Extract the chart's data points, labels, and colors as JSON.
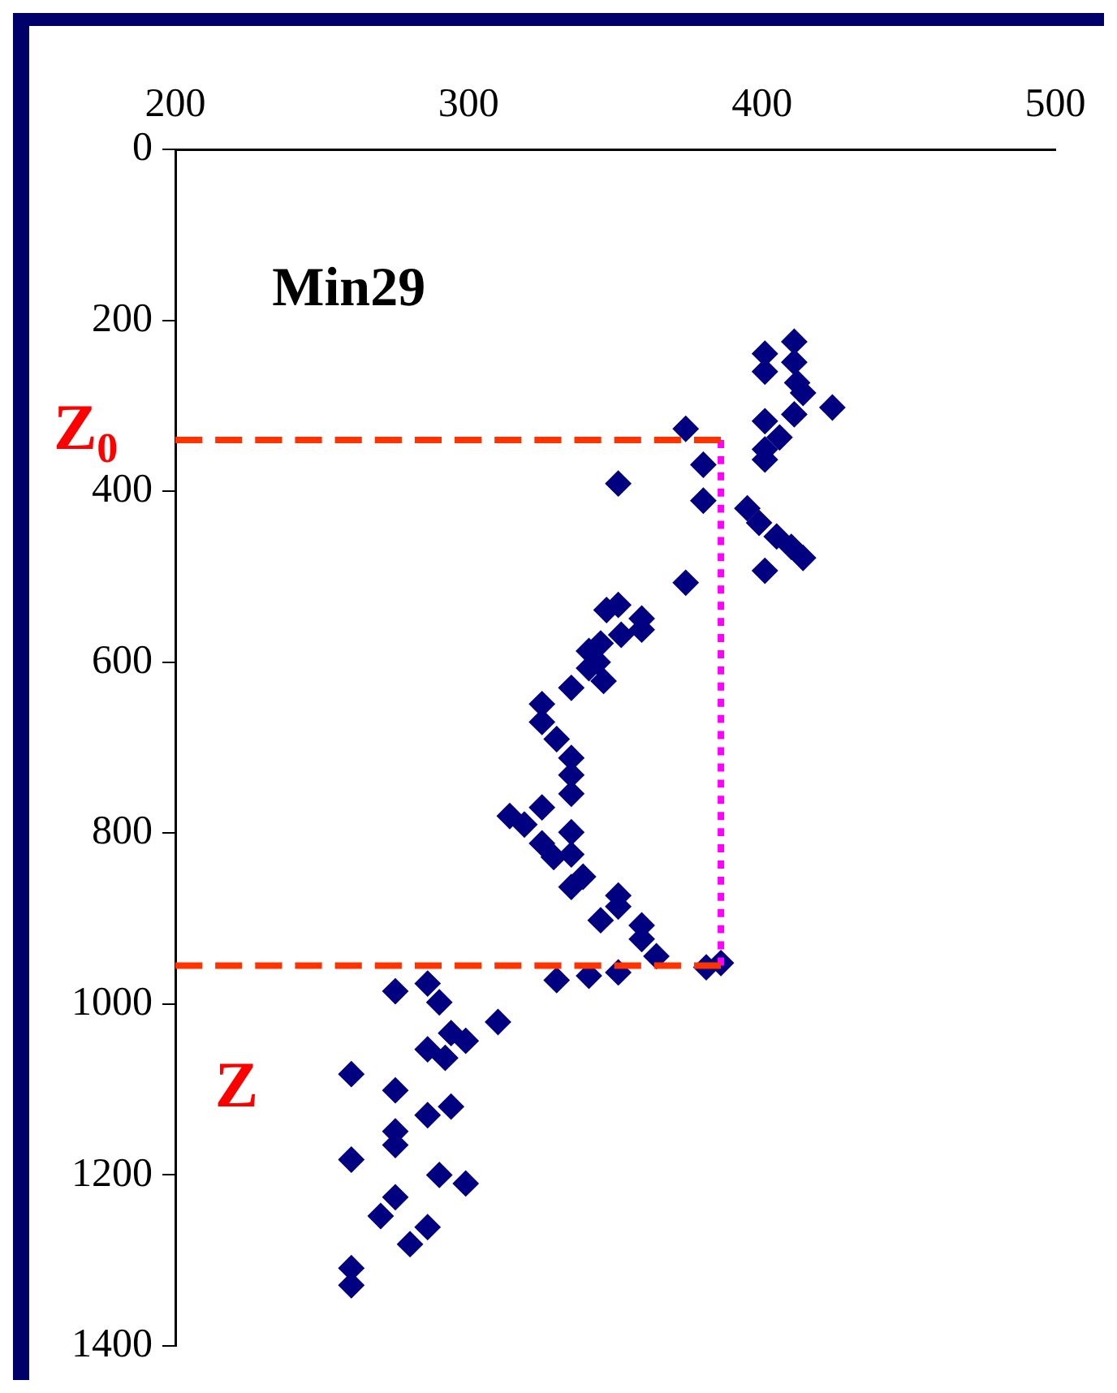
{
  "chart_data": {
    "type": "scatter",
    "annotations": [
      "Min29",
      "Z$_{0}$",
      "Z"
    ],
    "xlim": [
      200,
      500
    ],
    "xticks": [
      200,
      300,
      400,
      500
    ],
    "ylim": [
      1400,
      0
    ],
    "yticks": [
      0,
      200,
      400,
      600,
      800,
      1000,
      1200,
      1400
    ],
    "grid": false,
    "legend": false,
    "series": [
      {
        "type": "scatter",
        "color": "#000080",
        "marker": "diamond",
        "x": [
          411,
          401,
          411,
          401,
          412,
          414,
          424,
          411,
          401,
          406,
          374,
          401,
          401,
          380,
          351,
          380,
          395,
          399,
          405,
          410,
          414,
          401,
          374,
          351,
          347,
          359,
          359,
          352,
          345,
          341,
          344,
          346,
          335,
          341,
          325,
          325,
          330,
          335,
          335,
          335,
          314,
          325,
          319,
          335,
          325,
          329,
          335,
          339,
          335,
          351,
          351,
          345,
          359,
          359,
          364,
          381,
          386,
          330,
          341,
          351,
          275,
          286,
          290,
          310,
          294,
          299,
          286,
          292,
          260,
          275,
          294,
          286,
          275,
          275,
          260,
          290,
          299,
          275,
          270,
          286,
          280,
          260,
          260
        ],
        "values": [
          225,
          239,
          249,
          260,
          273,
          285,
          302,
          310,
          318,
          337,
          327,
          351,
          363,
          369,
          391,
          411,
          420,
          437,
          453,
          465,
          478,
          493,
          507,
          533,
          539,
          549,
          562,
          568,
          578,
          587,
          600,
          622,
          630,
          607,
          649,
          670,
          690,
          712,
          732,
          754,
          780,
          770,
          790,
          799,
          812,
          828,
          825,
          851,
          863,
          873,
          886,
          902,
          908,
          924,
          944,
          957,
          952,
          972,
          967,
          963,
          985,
          976,
          998,
          1021,
          1034,
          1043,
          1053,
          1063,
          1082,
          1101,
          1120,
          1130,
          1149,
          1165,
          1182,
          1200,
          1210,
          1226,
          1248,
          1261,
          1281,
          1309,
          1329
        ]
      },
      {
        "type": "line",
        "color": "#ff3300",
        "line_style": "dashed",
        "x": [
          200,
          386
        ],
        "values": [
          340,
          340
        ]
      },
      {
        "type": "line",
        "color": "#ff3300",
        "line_style": "dashed",
        "x": [
          200,
          386
        ],
        "values": [
          955,
          955
        ]
      },
      {
        "type": "line",
        "color": "#ff00ff",
        "line_style": "dotted",
        "x": [
          386,
          386
        ],
        "values": [
          340,
          955
        ]
      }
    ]
  }
}
